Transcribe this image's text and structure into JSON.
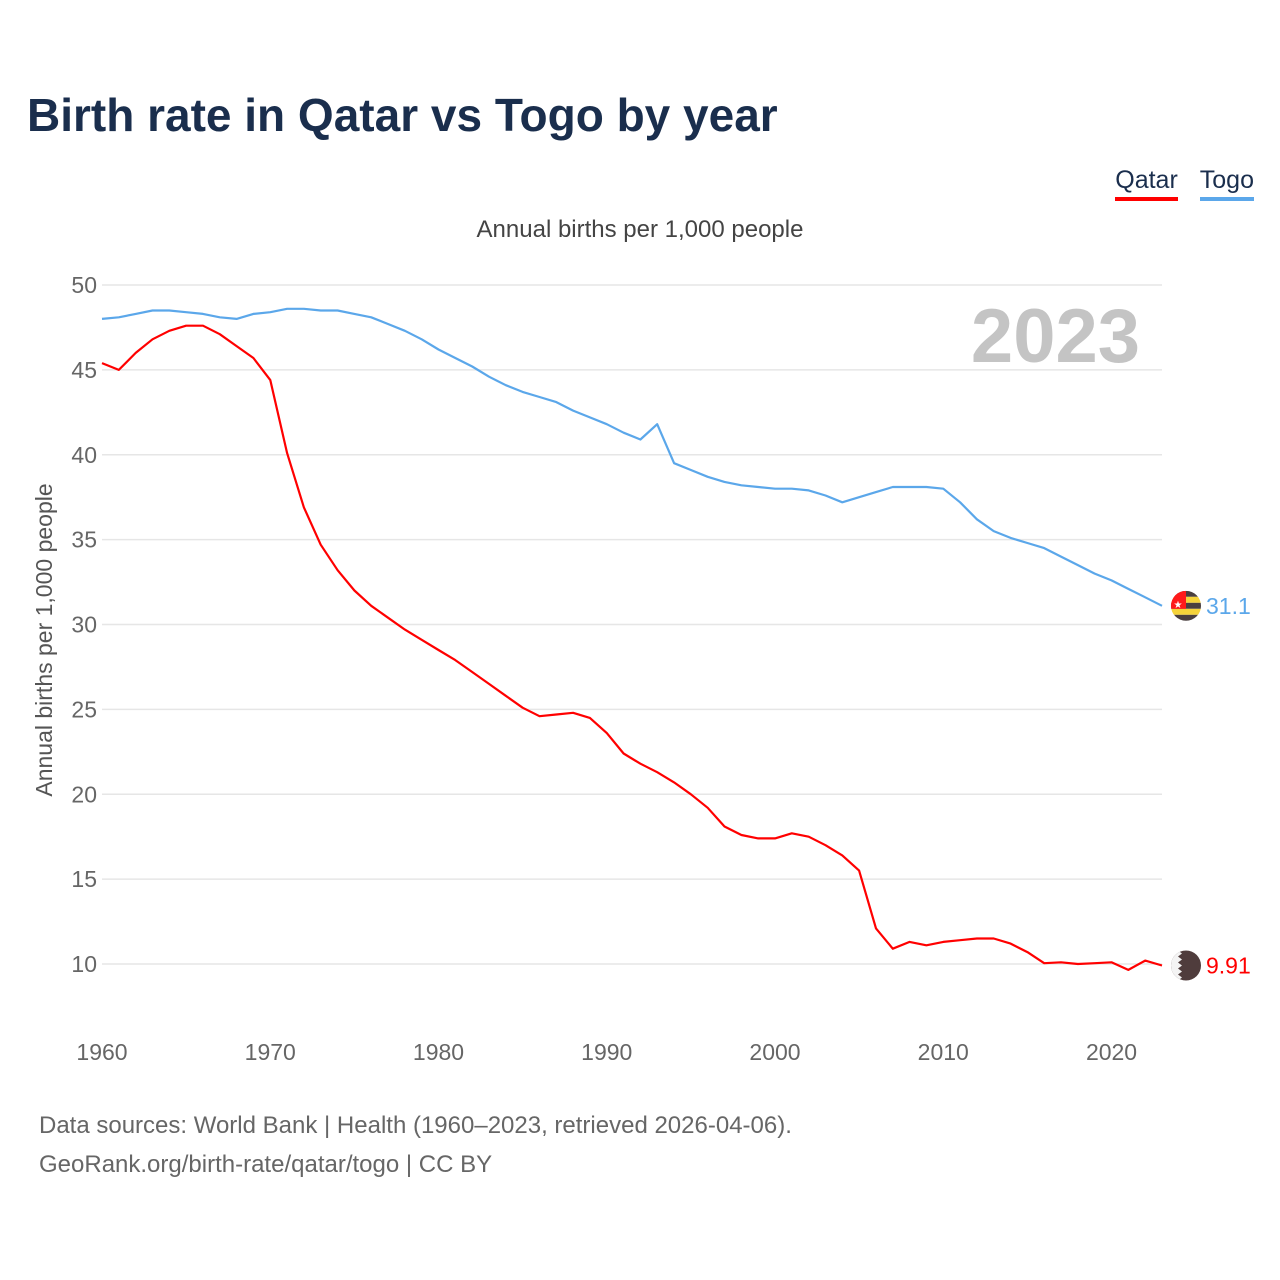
{
  "title": "Birth rate in Qatar vs Togo by year",
  "legend": [
    {
      "label": "Qatar",
      "color": "#ff0000"
    },
    {
      "label": "Togo",
      "color": "#5ba7ea"
    }
  ],
  "subtitle": "Annual births per 1,000 people",
  "year_watermark": "2023",
  "footer": {
    "line1": "Data sources: World Bank | Health (1960–2023, retrieved 2026-04-06).",
    "line2": "GeoRank.org/birth-rate/qatar/togo | CC BY"
  },
  "chart_data": {
    "type": "line",
    "title": "Birth rate in Qatar vs Togo by year",
    "xlabel": "",
    "ylabel": "Annual births per 1,000 people",
    "xlim": [
      1960,
      2023
    ],
    "ylim": [
      7,
      50
    ],
    "xticks": [
      1960,
      1970,
      1980,
      1990,
      2000,
      2010,
      2020
    ],
    "yticks": [
      10,
      15,
      20,
      25,
      30,
      35,
      40,
      45,
      50
    ],
    "grid": true,
    "legend_position": "top-right",
    "x": [
      1960,
      1961,
      1962,
      1963,
      1964,
      1965,
      1966,
      1967,
      1968,
      1969,
      1970,
      1971,
      1972,
      1973,
      1974,
      1975,
      1976,
      1977,
      1978,
      1979,
      1980,
      1981,
      1982,
      1983,
      1984,
      1985,
      1986,
      1987,
      1988,
      1989,
      1990,
      1991,
      1992,
      1993,
      1994,
      1995,
      1996,
      1997,
      1998,
      1999,
      2000,
      2001,
      2002,
      2003,
      2004,
      2005,
      2006,
      2007,
      2008,
      2009,
      2010,
      2011,
      2012,
      2013,
      2014,
      2015,
      2016,
      2017,
      2018,
      2019,
      2020,
      2021,
      2022,
      2023
    ],
    "series": [
      {
        "name": "Qatar",
        "color": "#ff0000",
        "end_label": "9.91",
        "values": [
          45.4,
          45.0,
          46.0,
          46.8,
          47.3,
          47.6,
          47.6,
          47.1,
          46.4,
          45.7,
          44.4,
          40.1,
          36.9,
          34.7,
          33.2,
          32.0,
          31.1,
          30.4,
          29.7,
          29.1,
          28.5,
          27.9,
          27.2,
          26.5,
          25.8,
          25.1,
          24.6,
          24.7,
          24.8,
          24.5,
          23.6,
          22.4,
          21.8,
          21.3,
          20.7,
          20.0,
          19.2,
          18.1,
          17.6,
          17.4,
          17.4,
          17.7,
          17.5,
          17.0,
          16.4,
          15.5,
          12.1,
          10.9,
          11.3,
          11.1,
          11.3,
          11.4,
          11.5,
          11.5,
          11.2,
          10.7,
          10.05,
          10.1,
          10.0,
          10.05,
          10.1,
          9.65,
          10.2,
          9.91
        ]
      },
      {
        "name": "Togo",
        "color": "#5ba7ea",
        "end_label": "31.1",
        "values": [
          48.0,
          48.1,
          48.3,
          48.5,
          48.5,
          48.4,
          48.3,
          48.1,
          48.0,
          48.3,
          48.4,
          48.6,
          48.6,
          48.5,
          48.5,
          48.3,
          48.1,
          47.7,
          47.3,
          46.8,
          46.2,
          45.7,
          45.2,
          44.6,
          44.1,
          43.7,
          43.4,
          43.1,
          42.6,
          42.2,
          41.8,
          41.3,
          40.9,
          41.8,
          39.5,
          39.1,
          38.7,
          38.4,
          38.2,
          38.1,
          38.0,
          38.0,
          37.9,
          37.6,
          37.2,
          37.5,
          37.8,
          38.1,
          38.1,
          38.1,
          38.0,
          37.2,
          36.2,
          35.5,
          35.1,
          34.8,
          34.5,
          34.0,
          33.5,
          33.0,
          32.6,
          32.1,
          31.6,
          31.1
        ]
      }
    ]
  }
}
